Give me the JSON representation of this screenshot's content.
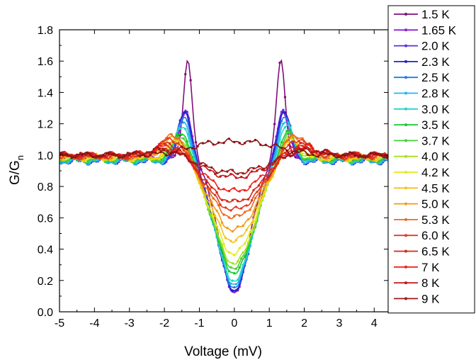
{
  "chart_data": {
    "type": "line",
    "xlabel": "Voltage (mV)",
    "ylabel_main": "G/G",
    "ylabel_sub": "n",
    "xlim": [
      -5,
      4.4
    ],
    "ylim": [
      0.0,
      1.8
    ],
    "xticks": [
      -5,
      -4,
      -3,
      -2,
      -1,
      0,
      1,
      2,
      3,
      4
    ],
    "xtick_labels": [
      "-5",
      "-4",
      "-3",
      "-2",
      "-1",
      "0",
      "1",
      "2",
      "3",
      "4"
    ],
    "yticks": [
      0.0,
      0.2,
      0.4,
      0.6,
      0.8,
      1.0,
      1.2,
      1.4,
      1.6,
      1.8
    ],
    "ytick_labels": [
      "0.0",
      "0.2",
      "0.4",
      "0.6",
      "0.8",
      "1.0",
      "1.2",
      "1.4",
      "1.6",
      "1.8"
    ],
    "grid": false,
    "legend_position": "right",
    "series": [
      {
        "name": "1.5 K",
        "color": "#7f0f7a",
        "params": {
          "min": 0.13,
          "peak": 1.62,
          "peakPos": 1.33,
          "peakW": 0.18,
          "width": 0.62,
          "sat": 0.98
        }
      },
      {
        "name": "1.65 K",
        "color": "#8a1fd6",
        "params": {
          "min": 0.13,
          "peak": 1.3,
          "peakPos": 1.38,
          "peakW": 0.25,
          "width": 0.68,
          "sat": 0.96
        }
      },
      {
        "name": "2.0 K",
        "color": "#5a2ee0",
        "params": {
          "min": 0.14,
          "peak": 1.31,
          "peakPos": 1.4,
          "peakW": 0.26,
          "width": 0.69,
          "sat": 0.96
        }
      },
      {
        "name": "2.3 K",
        "color": "#1e22c8",
        "params": {
          "min": 0.14,
          "peak": 1.3,
          "peakPos": 1.42,
          "peakW": 0.27,
          "width": 0.7,
          "sat": 0.96
        }
      },
      {
        "name": "2.5 K",
        "color": "#1f7be6",
        "params": {
          "min": 0.16,
          "peak": 1.27,
          "peakPos": 1.43,
          "peakW": 0.28,
          "width": 0.72,
          "sat": 0.96
        }
      },
      {
        "name": "2.8 K",
        "color": "#23b6ee",
        "params": {
          "min": 0.18,
          "peak": 1.24,
          "peakPos": 1.45,
          "peakW": 0.29,
          "width": 0.74,
          "sat": 0.96
        }
      },
      {
        "name": "3.0 K",
        "color": "#21d6c9",
        "params": {
          "min": 0.2,
          "peak": 1.21,
          "peakPos": 1.47,
          "peakW": 0.3,
          "width": 0.76,
          "sat": 0.97
        }
      },
      {
        "name": "3.5 K",
        "color": "#17c92e",
        "params": {
          "min": 0.25,
          "peak": 1.17,
          "peakPos": 1.5,
          "peakW": 0.32,
          "width": 0.8,
          "sat": 0.97
        }
      },
      {
        "name": "3.7 K",
        "color": "#45d13a",
        "params": {
          "min": 0.28,
          "peak": 1.15,
          "peakPos": 1.52,
          "peakW": 0.33,
          "width": 0.82,
          "sat": 0.97
        }
      },
      {
        "name": "4.0 K",
        "color": "#a6e01e",
        "params": {
          "min": 0.31,
          "peak": 1.13,
          "peakPos": 1.55,
          "peakW": 0.35,
          "width": 0.85,
          "sat": 0.98
        }
      },
      {
        "name": "4.2 K",
        "color": "#e3ea16",
        "params": {
          "min": 0.37,
          "peak": 1.12,
          "peakPos": 1.58,
          "peakW": 0.37,
          "width": 0.88,
          "sat": 0.98
        }
      },
      {
        "name": "4.5 K",
        "color": "#f5c316",
        "params": {
          "min": 0.45,
          "peak": 1.11,
          "peakPos": 1.62,
          "peakW": 0.4,
          "width": 0.92,
          "sat": 0.98
        }
      },
      {
        "name": "5.0 K",
        "color": "#f59a16",
        "params": {
          "min": 0.52,
          "peak": 1.14,
          "peakPos": 1.65,
          "peakW": 0.45,
          "width": 0.96,
          "sat": 0.99
        }
      },
      {
        "name": "5.3 K",
        "color": "#ef6a1c",
        "params": {
          "min": 0.6,
          "peak": 1.15,
          "peakPos": 1.7,
          "peakW": 0.48,
          "width": 1.0,
          "sat": 0.99
        }
      },
      {
        "name": "6.0 K",
        "color": "#e23a1f",
        "params": {
          "min": 0.65,
          "peak": 1.12,
          "peakPos": 1.75,
          "peakW": 0.52,
          "width": 1.05,
          "sat": 0.99
        }
      },
      {
        "name": "6.5 K",
        "color": "#d3261c",
        "params": {
          "min": 0.7,
          "peak": 1.09,
          "peakPos": 1.8,
          "peakW": 0.56,
          "width": 1.1,
          "sat": 1.0
        }
      },
      {
        "name": "7 K",
        "color": "#f2231c",
        "params": {
          "min": 0.77,
          "peak": 1.07,
          "peakPos": 1.85,
          "peakW": 0.6,
          "width": 1.15,
          "sat": 1.0
        }
      },
      {
        "name": "8 K",
        "color": "#c0161a",
        "params": {
          "min": 0.86,
          "peak": 1.05,
          "peakPos": 1.95,
          "peakW": 0.65,
          "width": 1.25,
          "sat": 1.0
        }
      },
      {
        "name": "9 K",
        "color": "#9e1a1a",
        "params": {
          "min": 0.89,
          "peak": 1.04,
          "peakPos": 2.0,
          "peakW": 0.7,
          "width": 1.3,
          "sat": 1.0
        }
      },
      {
        "name": "",
        "color": "#8b1212",
        "legend": false,
        "params": {
          "min": 1.08,
          "peak": 1.02,
          "peakPos": 1.0,
          "peakW": 0.8,
          "width": 1.3,
          "sat": 1.0
        }
      }
    ]
  }
}
